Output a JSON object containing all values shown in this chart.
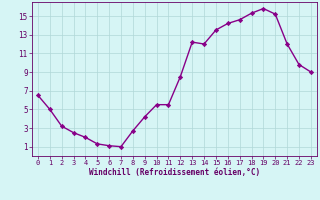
{
  "x": [
    0,
    1,
    2,
    3,
    4,
    5,
    6,
    7,
    8,
    9,
    10,
    11,
    12,
    13,
    14,
    15,
    16,
    17,
    18,
    19,
    20,
    21,
    22,
    23
  ],
  "y": [
    6.5,
    5.0,
    3.2,
    2.5,
    2.0,
    1.3,
    1.1,
    1.0,
    2.7,
    4.2,
    5.5,
    5.5,
    8.5,
    12.2,
    12.0,
    13.5,
    14.2,
    14.6,
    15.3,
    15.8,
    15.2,
    12.0,
    9.8,
    9.0
  ],
  "line_color": "#880088",
  "marker": "D",
  "marker_size": 2.2,
  "bg_color": "#d6f5f5",
  "grid_color": "#b0d8d8",
  "xlabel": "Windchill (Refroidissement éolien,°C)",
  "xlabel_color": "#660066",
  "tick_color": "#660066",
  "xlim": [
    -0.5,
    23.5
  ],
  "ylim": [
    0,
    16.5
  ],
  "yticks": [
    1,
    3,
    5,
    7,
    9,
    11,
    13,
    15
  ],
  "xticks": [
    0,
    1,
    2,
    3,
    4,
    5,
    6,
    7,
    8,
    9,
    10,
    11,
    12,
    13,
    14,
    15,
    16,
    17,
    18,
    19,
    20,
    21,
    22,
    23
  ],
  "spine_color": "#660066",
  "line_width": 1.0,
  "tick_fontsize": 5.0,
  "xlabel_fontsize": 5.5
}
